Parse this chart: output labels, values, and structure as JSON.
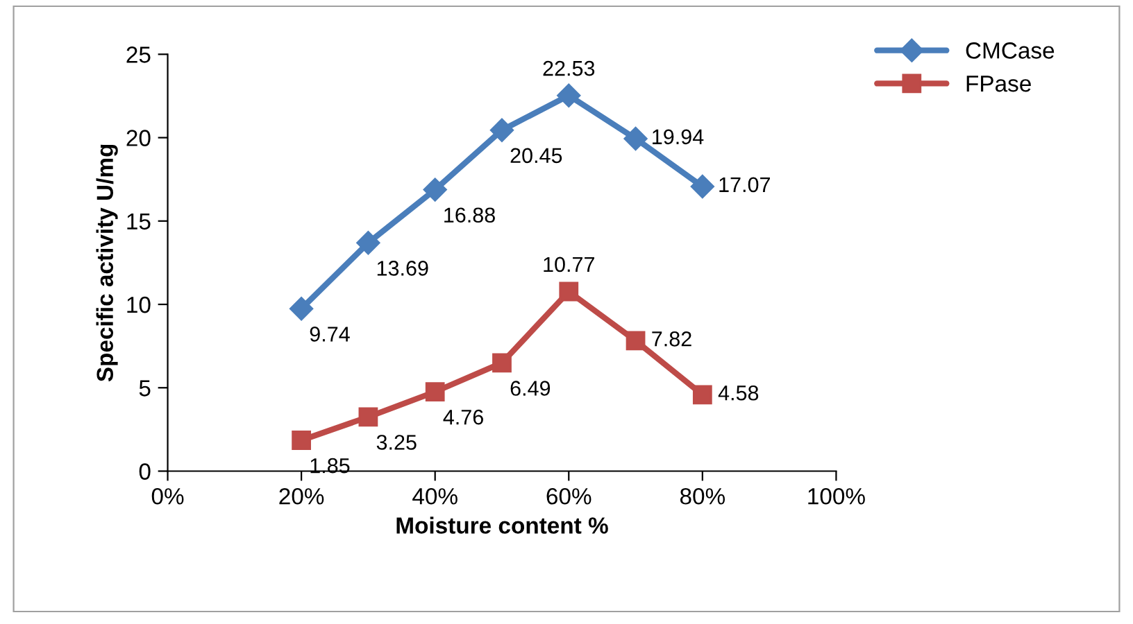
{
  "chart_data": {
    "type": "line",
    "xlabel": "Moisture content %",
    "ylabel": "Specific activity U/mg",
    "x": [
      20,
      30,
      40,
      50,
      60,
      70,
      80
    ],
    "series": [
      {
        "name": "CMCase",
        "color": "#4a7ebb",
        "values": [
          9.74,
          13.69,
          16.88,
          20.45,
          22.53,
          19.94,
          17.07
        ],
        "marker": "diamond"
      },
      {
        "name": "FPase",
        "color": "#be4b48",
        "values": [
          1.85,
          3.25,
          4.76,
          6.49,
          10.77,
          7.82,
          4.58
        ],
        "marker": "square"
      }
    ],
    "xlim": [
      0,
      100
    ],
    "xticks": [
      {
        "value": 0,
        "label": "0%"
      },
      {
        "value": 20,
        "label": "20%"
      },
      {
        "value": 40,
        "label": "40%"
      },
      {
        "value": 60,
        "label": "60%"
      },
      {
        "value": 80,
        "label": "80%"
      },
      {
        "value": 100,
        "label": "100%"
      }
    ],
    "ylim": [
      0,
      25
    ],
    "yticks": [
      0,
      5,
      10,
      15,
      20,
      25
    ],
    "grid": false,
    "legend": "top right",
    "data_labels": true,
    "line_style": "solid"
  }
}
